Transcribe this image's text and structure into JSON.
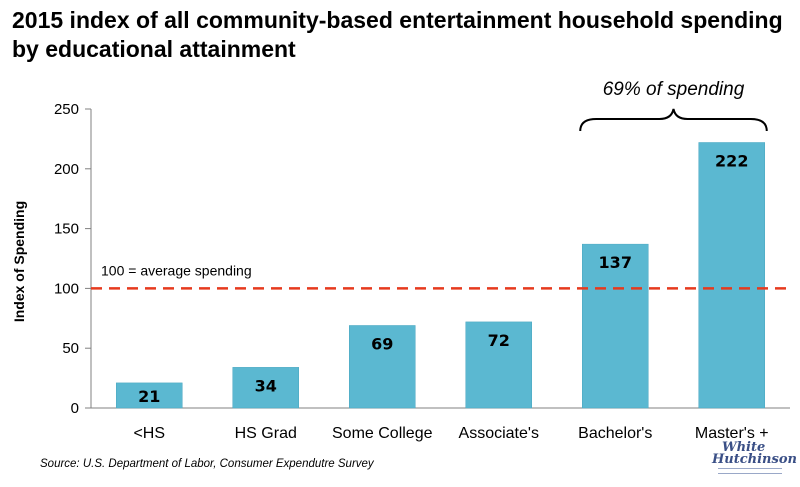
{
  "chart_data": {
    "type": "bar",
    "title": "2015 index of all community-based entertainment household spending by educational attainment",
    "ylabel": "Index of Spending",
    "categories": [
      "<HS",
      "HS Grad",
      "Some College",
      "Associate's",
      "Bachelor's",
      "Master's +"
    ],
    "values": [
      21,
      34,
      69,
      72,
      137,
      222
    ],
    "value_labels": [
      "21",
      "34",
      "69",
      "72",
      "137",
      "222"
    ],
    "ylim": [
      0,
      250
    ],
    "yticks": [
      0,
      50,
      100,
      150,
      200,
      250
    ],
    "ytick_labels": [
      "0",
      "50",
      "100",
      "150",
      "200",
      "250"
    ],
    "grid": false,
    "legend": "none",
    "bar_color": "#5bb8d1",
    "reference_line": {
      "value": 100,
      "label": "100 = average spending",
      "color": "#e63a1e"
    },
    "bracket_annotation": {
      "text": "69% of spending",
      "spans": [
        "Bachelor's",
        "Master's +"
      ]
    }
  },
  "source": "Source: U.S. Department of Labor, Consumer Expendutre Survey",
  "logo": {
    "line1": "White",
    "line2": "Hutchinson"
  }
}
